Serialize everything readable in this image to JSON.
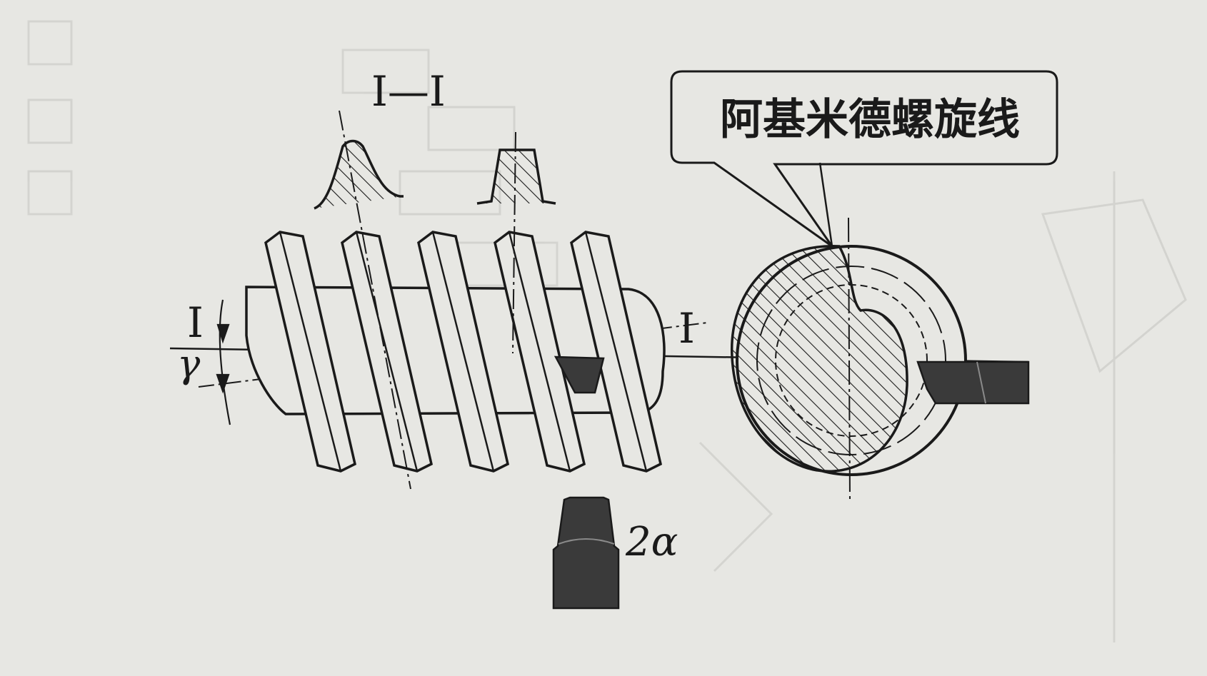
{
  "labels": {
    "section_title": "I—I",
    "section_mark_left": "I",
    "section_mark_right": "I",
    "helix_angle": "γ",
    "tool_angle": "2α",
    "callout": "阿基米德螺旋线"
  },
  "colors": {
    "paper": "#e7e7e3",
    "ink": "#1a1a1a",
    "tool_fill": "#3a3a3a",
    "ghost_text": "#c9c9c5"
  },
  "diagram": {
    "worm_thread_crests": 5,
    "subject": "worm with straight-sided tool and end-view cross-section"
  }
}
